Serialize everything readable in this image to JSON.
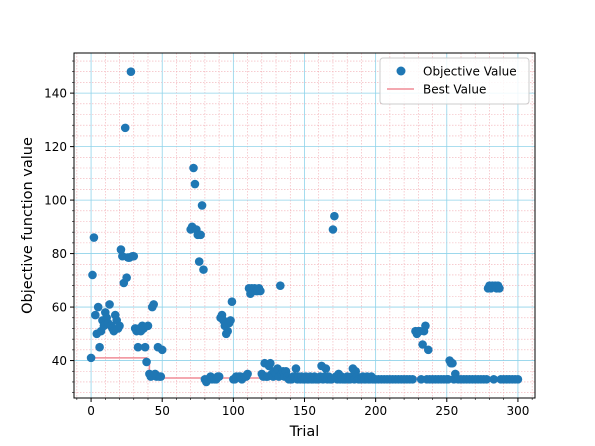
{
  "chart_data": {
    "type": "scatter",
    "xlabel": "Trial",
    "ylabel": "Objective function value",
    "xlim": [
      -12,
      312
    ],
    "ylim": [
      26,
      155
    ],
    "xticks": [
      0,
      50,
      100,
      150,
      200,
      250,
      300
    ],
    "yticks": [
      40,
      60,
      80,
      100,
      120,
      140
    ],
    "grid": true,
    "legend_position": "top-right",
    "colors": {
      "scatter": "#1f77b4",
      "line": "#f08c96",
      "grid_major": "#8fd3ea",
      "grid_minor": "#f2aeb4"
    },
    "series": [
      {
        "name": "Objective Value",
        "kind": "scatter",
        "points": [
          [
            0,
            41
          ],
          [
            1,
            72
          ],
          [
            2,
            86
          ],
          [
            3,
            57
          ],
          [
            4,
            50
          ],
          [
            5,
            60
          ],
          [
            6,
            45
          ],
          [
            7,
            51
          ],
          [
            8,
            55
          ],
          [
            9,
            53
          ],
          [
            10,
            58
          ],
          [
            11,
            56
          ],
          [
            12,
            54
          ],
          [
            13,
            61
          ],
          [
            14,
            53
          ],
          [
            15,
            52
          ],
          [
            16,
            51
          ],
          [
            17,
            57
          ],
          [
            18,
            55
          ],
          [
            19,
            52
          ],
          [
            20,
            53
          ],
          [
            21,
            81.5
          ],
          [
            22,
            79
          ],
          [
            23,
            69
          ],
          [
            24,
            127
          ],
          [
            25,
            71
          ],
          [
            26,
            78.5
          ],
          [
            27,
            78.5
          ],
          [
            28,
            148
          ],
          [
            29,
            79
          ],
          [
            30,
            79
          ],
          [
            31,
            52
          ],
          [
            32,
            51
          ],
          [
            33,
            45
          ],
          [
            34,
            52
          ],
          [
            35,
            51
          ],
          [
            36,
            53
          ],
          [
            37,
            52
          ],
          [
            38,
            45
          ],
          [
            39,
            39.5
          ],
          [
            40,
            53
          ],
          [
            41,
            35
          ],
          [
            42,
            34
          ],
          [
            43,
            60
          ],
          [
            44,
            61
          ],
          [
            45,
            35
          ],
          [
            46,
            34
          ],
          [
            47,
            45
          ],
          [
            48,
            34
          ],
          [
            49,
            34
          ],
          [
            50,
            44
          ],
          [
            70,
            89
          ],
          [
            71,
            90
          ],
          [
            72,
            112
          ],
          [
            73,
            106
          ],
          [
            74,
            89
          ],
          [
            75,
            87
          ],
          [
            76,
            77
          ],
          [
            77,
            87
          ],
          [
            78,
            98
          ],
          [
            79,
            74
          ],
          [
            80,
            33
          ],
          [
            81,
            32
          ],
          [
            82,
            33
          ],
          [
            84,
            34
          ],
          [
            85,
            33
          ],
          [
            87,
            33
          ],
          [
            88,
            33
          ],
          [
            89,
            34
          ],
          [
            90,
            34
          ],
          [
            91,
            56
          ],
          [
            92,
            57
          ],
          [
            93,
            55
          ],
          [
            94,
            53
          ],
          [
            95,
            50
          ],
          [
            96,
            51
          ],
          [
            97,
            54
          ],
          [
            98,
            55
          ],
          [
            99,
            62
          ],
          [
            100,
            33
          ],
          [
            101,
            33
          ],
          [
            102,
            34
          ],
          [
            104,
            34
          ],
          [
            105,
            34
          ],
          [
            106,
            33
          ],
          [
            108,
            34
          ],
          [
            109,
            34
          ],
          [
            110,
            35
          ],
          [
            111,
            67
          ],
          [
            112,
            65
          ],
          [
            113,
            67
          ],
          [
            114,
            66
          ],
          [
            115,
            67
          ],
          [
            116,
            66
          ],
          [
            117,
            66
          ],
          [
            118,
            67
          ],
          [
            119,
            66
          ],
          [
            120,
            35
          ],
          [
            121,
            34
          ],
          [
            122,
            39
          ],
          [
            123,
            34
          ],
          [
            124,
            34
          ],
          [
            125,
            38
          ],
          [
            126,
            39
          ],
          [
            127,
            35
          ],
          [
            128,
            34
          ],
          [
            129,
            36
          ],
          [
            130,
            35
          ],
          [
            131,
            37
          ],
          [
            132,
            34
          ],
          [
            133,
            68
          ],
          [
            134,
            35
          ],
          [
            135,
            36
          ],
          [
            136,
            34
          ],
          [
            137,
            36
          ],
          [
            138,
            34
          ],
          [
            139,
            33
          ],
          [
            140,
            33
          ],
          [
            141,
            33
          ],
          [
            142,
            34
          ],
          [
            143,
            34
          ],
          [
            144,
            37
          ],
          [
            145,
            33
          ],
          [
            146,
            34
          ],
          [
            147,
            33
          ],
          [
            148,
            34
          ],
          [
            149,
            33
          ],
          [
            150,
            33
          ],
          [
            151,
            34
          ],
          [
            152,
            33
          ],
          [
            153,
            33
          ],
          [
            154,
            34
          ],
          [
            155,
            33
          ],
          [
            156,
            33
          ],
          [
            157,
            34
          ],
          [
            158,
            33
          ],
          [
            159,
            33
          ],
          [
            160,
            33
          ],
          [
            161,
            34
          ],
          [
            162,
            38
          ],
          [
            163,
            33
          ],
          [
            164,
            34
          ],
          [
            165,
            37
          ],
          [
            166,
            33
          ],
          [
            167,
            34
          ],
          [
            168,
            33
          ],
          [
            169,
            33
          ],
          [
            170,
            89
          ],
          [
            171,
            94
          ],
          [
            172,
            34
          ],
          [
            173,
            33
          ],
          [
            174,
            35
          ],
          [
            175,
            33
          ],
          [
            176,
            34
          ],
          [
            177,
            33
          ],
          [
            178,
            33
          ],
          [
            179,
            33
          ],
          [
            180,
            34
          ],
          [
            181,
            33
          ],
          [
            182,
            33
          ],
          [
            183,
            34
          ],
          [
            184,
            37
          ],
          [
            185,
            33
          ],
          [
            186,
            36
          ],
          [
            187,
            34
          ],
          [
            188,
            33
          ],
          [
            189,
            33
          ],
          [
            190,
            33
          ],
          [
            191,
            34
          ],
          [
            192,
            33
          ],
          [
            193,
            33
          ],
          [
            194,
            34
          ],
          [
            195,
            33
          ],
          [
            196,
            33
          ],
          [
            197,
            34
          ],
          [
            198,
            33
          ],
          [
            199,
            33
          ],
          [
            200,
            33
          ],
          [
            202,
            33
          ],
          [
            204,
            33
          ],
          [
            206,
            33
          ],
          [
            208,
            33
          ],
          [
            210,
            33
          ],
          [
            212,
            33
          ],
          [
            214,
            33
          ],
          [
            216,
            33
          ],
          [
            218,
            33
          ],
          [
            220,
            33
          ],
          [
            222,
            33
          ],
          [
            224,
            33
          ],
          [
            226,
            33
          ],
          [
            228,
            51
          ],
          [
            229,
            50
          ],
          [
            230,
            51
          ],
          [
            231,
            51
          ],
          [
            232,
            33
          ],
          [
            233,
            46
          ],
          [
            234,
            51
          ],
          [
            235,
            53
          ],
          [
            236,
            33
          ],
          [
            237,
            44
          ],
          [
            238,
            33
          ],
          [
            240,
            33
          ],
          [
            242,
            33
          ],
          [
            244,
            33
          ],
          [
            246,
            33
          ],
          [
            248,
            33
          ],
          [
            250,
            33
          ],
          [
            251,
            33
          ],
          [
            252,
            40
          ],
          [
            253,
            39
          ],
          [
            254,
            39
          ],
          [
            255,
            33
          ],
          [
            256,
            35
          ],
          [
            258,
            33
          ],
          [
            260,
            33
          ],
          [
            262,
            33
          ],
          [
            264,
            33
          ],
          [
            266,
            33
          ],
          [
            268,
            33
          ],
          [
            270,
            33
          ],
          [
            272,
            33
          ],
          [
            274,
            33
          ],
          [
            276,
            33
          ],
          [
            278,
            33
          ],
          [
            279,
            67
          ],
          [
            280,
            68
          ],
          [
            281,
            67
          ],
          [
            282,
            68
          ],
          [
            283,
            33
          ],
          [
            284,
            68
          ],
          [
            285,
            67
          ],
          [
            286,
            68
          ],
          [
            287,
            67
          ],
          [
            288,
            33
          ],
          [
            290,
            33
          ],
          [
            292,
            33
          ],
          [
            294,
            33
          ],
          [
            296,
            33
          ],
          [
            298,
            33
          ],
          [
            300,
            33
          ]
        ]
      },
      {
        "name": "Best Value",
        "kind": "step-line",
        "points": [
          [
            0,
            41
          ],
          [
            39,
            41
          ],
          [
            39,
            39.5
          ],
          [
            41,
            39.5
          ],
          [
            41,
            35
          ],
          [
            42,
            35
          ],
          [
            42,
            34
          ],
          [
            48,
            34
          ],
          [
            48,
            33.5
          ],
          [
            300,
            33.5
          ]
        ]
      }
    ]
  }
}
